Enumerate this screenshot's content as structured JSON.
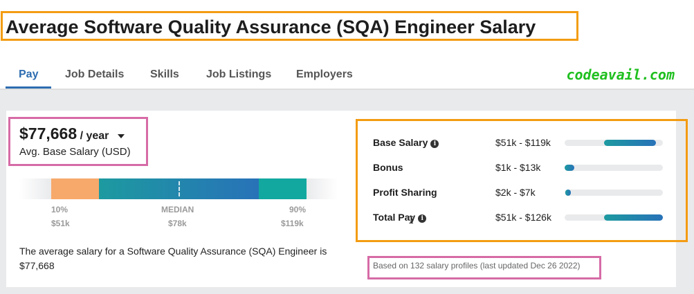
{
  "page": {
    "title": "Average Software Quality Assurance (SQA) Engineer Salary",
    "watermark": "codeavail.com"
  },
  "tabs": [
    {
      "label": "Pay",
      "active": true
    },
    {
      "label": "Job Details",
      "active": false
    },
    {
      "label": "Skills",
      "active": false
    },
    {
      "label": "Job Listings",
      "active": false
    },
    {
      "label": "Employers",
      "active": false
    }
  ],
  "salary": {
    "amount": "$77,668",
    "period": "/ year",
    "label": "Avg. Base Salary (USD)"
  },
  "range": {
    "p10_label": "10%",
    "p10_value": "$51k",
    "median_label": "MEDIAN",
    "median_value": "$78k",
    "p90_label": "90%",
    "p90_value": "$119k"
  },
  "description": "The average salary for a Software Quality Assurance (SQA) Engineer is $77,668",
  "breakdown": [
    {
      "label": "Base Salary",
      "has_info": true,
      "range": "$51k - $119k",
      "bar_start": 0.4,
      "bar_end": 0.93
    },
    {
      "label": "Bonus",
      "has_info": false,
      "range": "$1k - $13k",
      "bar_start": 0.0,
      "bar_end": 0.1
    },
    {
      "label": "Profit Sharing",
      "has_info": false,
      "range": "$2k - $7k",
      "bar_start": 0.01,
      "bar_end": 0.06
    },
    {
      "label": "Total Pay",
      "has_info": true,
      "range": "$51k - $126k",
      "bar_start": 0.4,
      "bar_end": 1.0
    }
  ],
  "footnote": "Based on 132 salary profiles (last updated Dec 26 2022)",
  "colors": {
    "accent_blue": "#2c6cb0",
    "highlight_orange": "#f39c12",
    "highlight_pink": "#d66ba6",
    "low_segment": "#f7a96b",
    "high_segment": "#12a8a0",
    "watermark_green": "#1fbf1f"
  },
  "icons": {
    "info": "info-circle-icon",
    "dropdown": "chevron-down-icon",
    "cursor": "text-cursor-icon"
  }
}
